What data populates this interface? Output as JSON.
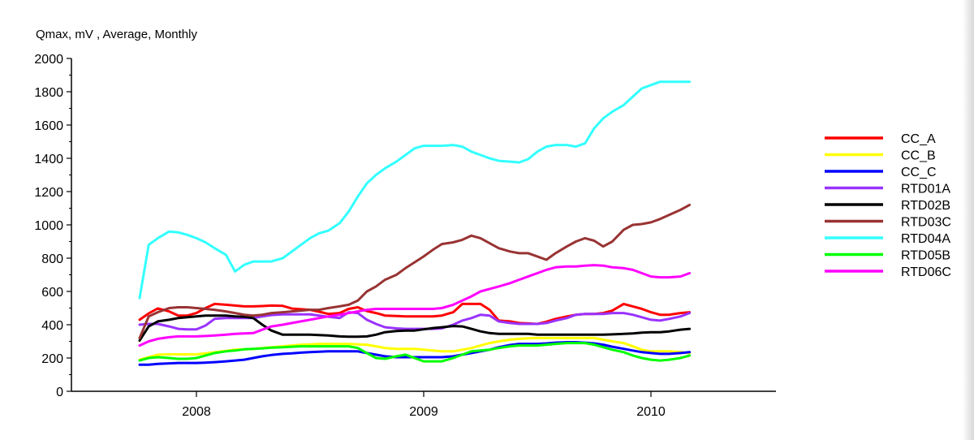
{
  "chart_data": {
    "type": "line",
    "title": "Qmax, mV , Average, Monthly",
    "xlim": [
      2007.45,
      2010.55
    ],
    "ylim": [
      0,
      2000
    ],
    "y_ticks": [
      0,
      200,
      400,
      600,
      800,
      1000,
      1200,
      1400,
      1600,
      1800,
      2000
    ],
    "x_ticks": [
      {
        "value": 2008.0,
        "label": "2008"
      },
      {
        "value": 2009.0,
        "label": "2009"
      },
      {
        "value": 2010.0,
        "label": "2010"
      }
    ],
    "grid": false,
    "legend_position": "right",
    "x": [
      2007.75,
      2007.79,
      2007.83,
      2007.88,
      2007.92,
      2007.96,
      2008.0,
      2008.04,
      2008.08,
      2008.13,
      2008.17,
      2008.21,
      2008.25,
      2008.29,
      2008.33,
      2008.38,
      2008.42,
      2008.46,
      2008.5,
      2008.54,
      2008.58,
      2008.63,
      2008.67,
      2008.71,
      2008.75,
      2008.79,
      2008.83,
      2008.88,
      2008.92,
      2008.96,
      2009.0,
      2009.04,
      2009.08,
      2009.13,
      2009.17,
      2009.21,
      2009.25,
      2009.29,
      2009.33,
      2009.38,
      2009.42,
      2009.46,
      2009.5,
      2009.54,
      2009.58,
      2009.63,
      2009.67,
      2009.71,
      2009.75,
      2009.79,
      2009.83,
      2009.88,
      2009.92,
      2009.96,
      2010.0,
      2010.04,
      2010.08,
      2010.13,
      2010.17
    ],
    "series": [
      {
        "name": "CC_A",
        "color": "#ff0000",
        "values": [
          430,
          468,
          498,
          480,
          455,
          455,
          470,
          500,
          525,
          520,
          515,
          510,
          510,
          512,
          515,
          513,
          497,
          493,
          490,
          478,
          465,
          470,
          495,
          505,
          482,
          470,
          455,
          452,
          450,
          450,
          450,
          450,
          455,
          475,
          525,
          525,
          525,
          490,
          425,
          420,
          410,
          408,
          405,
          418,
          435,
          450,
          460,
          465,
          465,
          470,
          485,
          525,
          510,
          495,
          475,
          460,
          460,
          470,
          475
        ]
      },
      {
        "name": "CC_B",
        "color": "#ffff00",
        "values": [
          190,
          205,
          220,
          222,
          222,
          222,
          222,
          228,
          235,
          243,
          250,
          252,
          255,
          260,
          265,
          270,
          275,
          280,
          282,
          285,
          285,
          285,
          285,
          282,
          280,
          270,
          260,
          255,
          255,
          255,
          250,
          245,
          240,
          240,
          250,
          260,
          275,
          290,
          300,
          310,
          315,
          318,
          320,
          320,
          320,
          320,
          320,
          320,
          320,
          310,
          300,
          290,
          270,
          250,
          240,
          240,
          240,
          235,
          230
        ]
      },
      {
        "name": "CC_C",
        "color": "#0000ff",
        "values": [
          160,
          160,
          165,
          168,
          170,
          170,
          170,
          172,
          175,
          180,
          185,
          190,
          200,
          210,
          218,
          225,
          228,
          232,
          235,
          238,
          240,
          240,
          240,
          240,
          230,
          220,
          210,
          205,
          205,
          205,
          205,
          205,
          205,
          210,
          220,
          230,
          240,
          250,
          265,
          278,
          285,
          285,
          285,
          288,
          292,
          295,
          295,
          292,
          288,
          280,
          268,
          255,
          245,
          235,
          230,
          225,
          225,
          230,
          235
        ]
      },
      {
        "name": "RTD01A",
        "color": "#9933ff",
        "values": [
          400,
          405,
          405,
          390,
          375,
          372,
          372,
          395,
          435,
          440,
          440,
          440,
          440,
          450,
          458,
          462,
          462,
          462,
          462,
          455,
          448,
          440,
          475,
          470,
          430,
          405,
          385,
          378,
          375,
          375,
          375,
          375,
          378,
          400,
          425,
          440,
          460,
          455,
          420,
          410,
          405,
          405,
          405,
          410,
          425,
          440,
          460,
          465,
          465,
          465,
          470,
          470,
          460,
          445,
          430,
          425,
          435,
          450,
          470
        ]
      },
      {
        "name": "RTD02B",
        "color": "#000000",
        "values": [
          305,
          390,
          420,
          430,
          440,
          445,
          450,
          455,
          455,
          455,
          450,
          448,
          440,
          400,
          365,
          340,
          340,
          340,
          340,
          338,
          335,
          330,
          328,
          328,
          330,
          340,
          355,
          362,
          365,
          365,
          372,
          380,
          385,
          392,
          390,
          375,
          360,
          350,
          345,
          345,
          345,
          345,
          340,
          340,
          340,
          340,
          340,
          340,
          340,
          340,
          342,
          345,
          348,
          352,
          355,
          355,
          360,
          370,
          375
        ]
      },
      {
        "name": "RTD03C",
        "color": "#993333",
        "values": [
          320,
          450,
          475,
          500,
          505,
          505,
          500,
          495,
          490,
          480,
          470,
          460,
          455,
          460,
          470,
          475,
          480,
          485,
          490,
          490,
          500,
          510,
          520,
          545,
          600,
          630,
          670,
          700,
          740,
          775,
          810,
          850,
          885,
          895,
          910,
          935,
          920,
          890,
          860,
          840,
          830,
          830,
          810,
          790,
          830,
          870,
          900,
          920,
          905,
          870,
          900,
          970,
          1000,
          1005,
          1015,
          1035,
          1060,
          1090,
          1120
        ]
      },
      {
        "name": "RTD04A",
        "color": "#33ffff",
        "values": [
          560,
          880,
          920,
          960,
          955,
          940,
          920,
          895,
          860,
          820,
          720,
          760,
          780,
          780,
          780,
          800,
          840,
          880,
          920,
          950,
          965,
          1010,
          1080,
          1170,
          1250,
          1300,
          1340,
          1380,
          1420,
          1460,
          1475,
          1475,
          1475,
          1480,
          1470,
          1440,
          1420,
          1400,
          1385,
          1380,
          1375,
          1395,
          1440,
          1470,
          1480,
          1480,
          1470,
          1490,
          1580,
          1640,
          1680,
          1720,
          1770,
          1820,
          1840,
          1860,
          1860,
          1860,
          1860
        ]
      },
      {
        "name": "RTD05B",
        "color": "#00ff00",
        "values": [
          185,
          200,
          205,
          200,
          195,
          195,
          200,
          215,
          230,
          240,
          245,
          252,
          255,
          258,
          262,
          265,
          268,
          270,
          270,
          270,
          270,
          270,
          270,
          260,
          230,
          200,
          195,
          210,
          220,
          200,
          180,
          180,
          180,
          200,
          220,
          240,
          245,
          250,
          260,
          270,
          275,
          275,
          275,
          280,
          285,
          290,
          290,
          290,
          280,
          265,
          250,
          235,
          215,
          200,
          190,
          185,
          190,
          200,
          215
        ]
      },
      {
        "name": "RTD06C",
        "color": "#ff00ff",
        "values": [
          275,
          300,
          315,
          325,
          330,
          330,
          330,
          332,
          335,
          340,
          345,
          348,
          350,
          370,
          390,
          400,
          410,
          420,
          430,
          440,
          450,
          460,
          470,
          480,
          490,
          495,
          495,
          495,
          495,
          495,
          495,
          495,
          500,
          520,
          545,
          570,
          600,
          615,
          630,
          650,
          670,
          690,
          710,
          730,
          745,
          750,
          750,
          755,
          758,
          755,
          745,
          740,
          730,
          710,
          690,
          685,
          685,
          690,
          710
        ]
      }
    ]
  }
}
